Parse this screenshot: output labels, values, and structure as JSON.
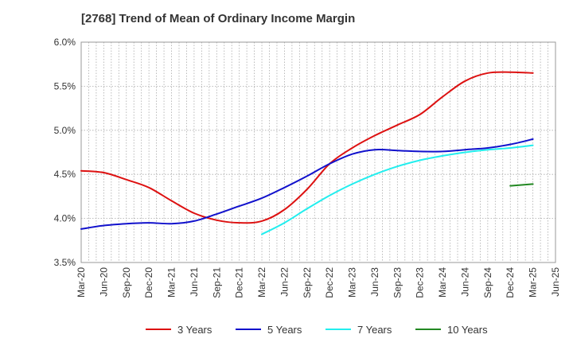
{
  "chart_data": {
    "type": "line",
    "title": "[2768]  Trend of Mean of Ordinary Income Margin",
    "xlabel": "",
    "ylabel": "",
    "y_ticks": [
      "3.5%",
      "4.0%",
      "4.5%",
      "5.0%",
      "5.5%",
      "6.0%"
    ],
    "ylim": [
      3.5,
      6.0
    ],
    "x_ticks": [
      "Mar-20",
      "Jun-20",
      "Sep-20",
      "Dec-20",
      "Mar-21",
      "Jun-21",
      "Sep-21",
      "Dec-21",
      "Mar-22",
      "Jun-22",
      "Sep-22",
      "Dec-22",
      "Mar-23",
      "Jun-23",
      "Sep-23",
      "Dec-23",
      "Mar-24",
      "Jun-24",
      "Sep-24",
      "Dec-24",
      "Mar-25",
      "Jun-25"
    ],
    "grid": true,
    "legend_position": "bottom",
    "series": [
      {
        "name": "3 Years",
        "color": "#dd1111",
        "x": [
          "Mar-20",
          "Jun-20",
          "Sep-20",
          "Dec-20",
          "Mar-21",
          "Jun-21",
          "Sep-21",
          "Dec-21",
          "Mar-22",
          "Jun-22",
          "Sep-22",
          "Dec-22",
          "Mar-23",
          "Jun-23",
          "Sep-23",
          "Dec-23",
          "Mar-24",
          "Jun-24",
          "Sep-24",
          "Dec-24",
          "Mar-25"
        ],
        "values": [
          4.54,
          4.52,
          4.44,
          4.35,
          4.2,
          4.06,
          3.98,
          3.95,
          3.97,
          4.1,
          4.33,
          4.62,
          4.8,
          4.94,
          5.06,
          5.18,
          5.38,
          5.56,
          5.65,
          5.66,
          5.65
        ]
      },
      {
        "name": "5 Years",
        "color": "#1111cc",
        "x": [
          "Mar-20",
          "Jun-20",
          "Sep-20",
          "Dec-20",
          "Mar-21",
          "Jun-21",
          "Sep-21",
          "Dec-21",
          "Mar-22",
          "Jun-22",
          "Sep-22",
          "Dec-22",
          "Mar-23",
          "Jun-23",
          "Sep-23",
          "Dec-23",
          "Mar-24",
          "Jun-24",
          "Sep-24",
          "Dec-24",
          "Mar-25"
        ],
        "values": [
          3.88,
          3.92,
          3.94,
          3.95,
          3.94,
          3.97,
          4.05,
          4.14,
          4.23,
          4.35,
          4.48,
          4.62,
          4.73,
          4.78,
          4.77,
          4.76,
          4.76,
          4.78,
          4.8,
          4.84,
          4.9
        ]
      },
      {
        "name": "7 Years",
        "color": "#22eeee",
        "x": [
          "Mar-22",
          "Jun-22",
          "Sep-22",
          "Dec-22",
          "Mar-23",
          "Jun-23",
          "Sep-23",
          "Dec-23",
          "Mar-24",
          "Jun-24",
          "Sep-24",
          "Dec-24",
          "Mar-25"
        ],
        "values": [
          3.82,
          3.95,
          4.11,
          4.26,
          4.39,
          4.5,
          4.59,
          4.66,
          4.71,
          4.75,
          4.78,
          4.8,
          4.83
        ]
      },
      {
        "name": "10 Years",
        "color": "#228822",
        "x": [
          "Dec-24",
          "Mar-25"
        ],
        "values": [
          4.37,
          4.39
        ]
      }
    ]
  }
}
